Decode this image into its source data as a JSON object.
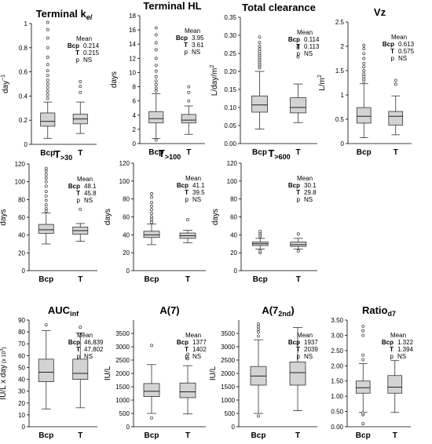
{
  "chart_data": [
    {
      "type": "box",
      "title": "Terminal k",
      "title_sub": "el",
      "title_sub_italic": true,
      "ylabel": "day",
      "ylabel_sup": "−1",
      "ylim": [
        0,
        1.0
      ],
      "yticks": [
        "0",
        "0.2",
        "0.4",
        "0.6",
        "0.8",
        "1"
      ],
      "categories": [
        "Bcp",
        "T"
      ],
      "boxes": [
        {
          "whislo": 0.05,
          "q1": 0.15,
          "med": 0.19,
          "q3": 0.26,
          "whishi": 0.35,
          "fliers": [
            0.38,
            0.41,
            0.44,
            0.47,
            0.5,
            0.53,
            0.57,
            0.61,
            0.66,
            0.72,
            0.8,
            0.88,
            0.95,
            1.01
          ]
        },
        {
          "whislo": 0.09,
          "q1": 0.17,
          "med": 0.21,
          "q3": 0.25,
          "whishi": 0.35,
          "fliers": [
            0.43,
            0.48,
            0.52
          ]
        }
      ],
      "stats": {
        "header": "Mean",
        "rows": [
          [
            "Bcp",
            "0.214"
          ],
          [
            "T",
            "0.215"
          ],
          [
            "p",
            "NS"
          ]
        ]
      }
    },
    {
      "type": "box",
      "title": "Terminal HL",
      "ylabel": "days",
      "ylim": [
        0,
        18
      ],
      "yticks": [
        "0",
        "2",
        "4",
        "6",
        "8",
        "10",
        "12",
        "14",
        "16",
        "18"
      ],
      "categories": [
        "Bcp",
        "T"
      ],
      "boxes": [
        {
          "whislo": 0.7,
          "q1": 2.9,
          "med": 3.5,
          "q3": 4.5,
          "whishi": 7.0,
          "fliers": [
            0.5,
            7.4,
            7.8,
            8.3,
            8.8,
            9.4,
            10.2,
            11.0,
            12.0,
            13.2,
            14.2,
            15.3,
            16.3
          ]
        },
        {
          "whislo": 1.3,
          "q1": 2.9,
          "med": 3.3,
          "q3": 4.1,
          "whishi": 5.3,
          "fliers": [
            6.0,
            7.2,
            8.0
          ]
        }
      ],
      "stats": {
        "header": "Mean",
        "rows": [
          [
            "Bcp",
            "3.95"
          ],
          [
            "T",
            "3.61"
          ],
          [
            "p",
            "NS"
          ]
        ]
      }
    },
    {
      "type": "box",
      "title": "Total clearance",
      "ylabel": "L/day/m",
      "ylabel_sup": "2",
      "ylim": [
        0,
        0.35
      ],
      "yticks": [
        "0.00",
        "0.05",
        "0.10",
        "0.15",
        "0.20",
        "0.25",
        "0.30",
        "0.35"
      ],
      "categories": [
        "Bcp",
        "T"
      ],
      "boxes": [
        {
          "whislo": 0.04,
          "q1": 0.087,
          "med": 0.107,
          "q3": 0.132,
          "whishi": 0.2,
          "fliers": [
            0.21,
            0.215,
            0.22,
            0.225,
            0.23,
            0.235,
            0.24,
            0.245,
            0.25,
            0.255,
            0.262,
            0.27,
            0.28,
            0.295
          ]
        },
        {
          "whislo": 0.058,
          "q1": 0.085,
          "med": 0.1,
          "q3": 0.127,
          "whishi": 0.165,
          "fliers": [
            0.24,
            0.265,
            0.27
          ]
        }
      ],
      "stats": {
        "header": "Mean",
        "rows": [
          [
            "Bcp",
            "0.114"
          ],
          [
            "T",
            "0.113"
          ],
          [
            "p",
            "NS"
          ]
        ]
      }
    },
    {
      "type": "box",
      "title": "Vz",
      "ylabel": "L/m",
      "ylabel_sup": "2",
      "ylim": [
        0,
        2.5
      ],
      "yticks": [
        "0",
        "0.5",
        "1",
        "1.5",
        "2",
        "2.5"
      ],
      "categories": [
        "Bcp",
        "T"
      ],
      "boxes": [
        {
          "whislo": 0.12,
          "q1": 0.42,
          "med": 0.56,
          "q3": 0.74,
          "whishi": 1.23,
          "fliers": [
            1.28,
            1.33,
            1.38,
            1.43,
            1.5,
            1.58,
            1.65,
            1.75,
            1.85,
            1.95,
            2.02
          ]
        },
        {
          "whislo": 0.18,
          "q1": 0.38,
          "med": 0.56,
          "q3": 0.66,
          "whishi": 0.98,
          "fliers": [
            1.22,
            1.3
          ]
        }
      ],
      "stats": {
        "header": "Mean",
        "rows": [
          [
            "Bcp",
            "0.613"
          ],
          [
            "T",
            "0.575"
          ],
          [
            "p",
            "NS"
          ]
        ]
      }
    },
    {
      "type": "box",
      "title": "T",
      "title_sub": ">30",
      "ylabel": "days",
      "ylim": [
        0,
        120
      ],
      "yticks": [
        "0",
        "20",
        "40",
        "60",
        "80",
        "100",
        "120"
      ],
      "categories": [
        "Bcp",
        "T"
      ],
      "boxes": [
        {
          "whislo": 30,
          "q1": 42,
          "med": 46,
          "q3": 52,
          "whishi": 65,
          "fliers": [
            67,
            70,
            74,
            79,
            84,
            89,
            95,
            100,
            104,
            108,
            112,
            115
          ]
        },
        {
          "whislo": 33,
          "q1": 41,
          "med": 45,
          "q3": 49,
          "whishi": 53,
          "fliers": [
            69
          ]
        }
      ],
      "stats": {
        "header": "Mean",
        "rows": [
          [
            "Bcp",
            "48.1"
          ],
          [
            "T",
            "45.8"
          ],
          [
            "p",
            "NS"
          ]
        ]
      }
    },
    {
      "type": "box",
      "title": "T",
      "title_sub": ">100",
      "ylabel": "days",
      "ylim": [
        0,
        120
      ],
      "yticks": [
        "0",
        "20",
        "40",
        "60",
        "80",
        "100",
        "120"
      ],
      "categories": [
        "Bcp",
        "T"
      ],
      "boxes": [
        {
          "whislo": 29,
          "q1": 37,
          "med": 40,
          "q3": 44,
          "whishi": 52,
          "fliers": [
            54,
            57,
            60,
            64,
            68,
            72,
            76,
            82,
            86
          ]
        },
        {
          "whislo": 31,
          "q1": 36,
          "med": 39,
          "q3": 42,
          "whishi": 45,
          "fliers": [
            57
          ]
        }
      ],
      "stats": {
        "header": "Mean",
        "rows": [
          [
            "Bcp",
            "41.1"
          ],
          [
            "T",
            "39.5"
          ],
          [
            "p",
            "NS"
          ]
        ]
      }
    },
    {
      "type": "box",
      "title": "T",
      "title_sub": ">600",
      "ylabel": "days",
      "ylim": [
        0,
        120
      ],
      "yticks": [
        "0",
        "20",
        "40",
        "60",
        "80",
        "100",
        "120"
      ],
      "categories": [
        "Bcp",
        "T"
      ],
      "boxes": [
        {
          "whislo": 24,
          "q1": 28,
          "med": 30,
          "q3": 32,
          "whishi": 36,
          "fliers": [
            20,
            22,
            38,
            40,
            42,
            44
          ]
        },
        {
          "whislo": 24,
          "q1": 27,
          "med": 29,
          "q3": 32,
          "whishi": 36,
          "fliers": [
            22,
            41
          ]
        }
      ],
      "stats": {
        "header": "Mean",
        "rows": [
          [
            "Bcp",
            "30.1"
          ],
          [
            "T",
            "29.8"
          ],
          [
            "p",
            "NS"
          ]
        ]
      }
    },
    {
      "type": "box",
      "title": "AUC",
      "title_sub": "inf",
      "ylabel": "IU/L x day",
      "ylabel_paren": "(x 10",
      "ylabel_paren_sup": "3",
      "ylabel_paren_end": ")",
      "ylim": [
        0,
        90
      ],
      "yticks": [
        "0",
        "10",
        "20",
        "30",
        "40",
        "50",
        "60",
        "70",
        "80",
        "90"
      ],
      "categories": [
        "Bcp",
        "T"
      ],
      "boxes": [
        {
          "whislo": 15,
          "q1": 38,
          "med": 46,
          "q3": 57,
          "whishi": 81,
          "fliers": [
            86
          ]
        },
        {
          "whislo": 16,
          "q1": 40,
          "med": 45,
          "q3": 57,
          "whishi": 79,
          "fliers": [
            84
          ]
        }
      ],
      "stats": {
        "header": "Mean",
        "rows": [
          [
            "Bcp",
            "46,839"
          ],
          [
            "T",
            "47,802"
          ],
          [
            "p",
            "NS"
          ]
        ]
      }
    },
    {
      "type": "box",
      "title": "A(7)",
      "ylabel": "IU/L",
      "ylim": [
        0,
        4000
      ],
      "yticks": [
        "0",
        "500",
        "1000",
        "1500",
        "2000",
        "2500",
        "3000",
        "3500"
      ],
      "categories": [
        "Bcp",
        "T"
      ],
      "boxes": [
        {
          "whislo": 500,
          "q1": 1130,
          "med": 1330,
          "q3": 1620,
          "whishi": 2330,
          "fliers": [
            330,
            3050
          ]
        },
        {
          "whislo": 480,
          "q1": 1090,
          "med": 1310,
          "q3": 1640,
          "whishi": 2290,
          "fliers": [
            2550,
            2720
          ]
        }
      ],
      "stats": {
        "header": "Mean",
        "rows": [
          [
            "Bcp",
            "1377"
          ],
          [
            "T",
            "1402"
          ],
          [
            "p",
            "NS"
          ]
        ]
      }
    },
    {
      "type": "box",
      "title": "A(7",
      "title_sub": "2nd",
      "title_end": ")",
      "ylabel": "IU/L",
      "ylim": [
        0,
        4000
      ],
      "yticks": [
        "0",
        "500",
        "1000",
        "1500",
        "2000",
        "2500",
        "3000",
        "3500"
      ],
      "categories": [
        "Bcp",
        "T"
      ],
      "boxes": [
        {
          "whislo": 500,
          "q1": 1560,
          "med": 1900,
          "q3": 2260,
          "whishi": 3260,
          "fliers": [
            400,
            3400,
            3550,
            3650,
            3750,
            3850
          ]
        },
        {
          "whislo": 600,
          "q1": 1560,
          "med": 2030,
          "q3": 2430,
          "whishi": 3720,
          "fliers": []
        }
      ],
      "stats": {
        "header": "Mean",
        "rows": [
          [
            "Bcp",
            "1937"
          ],
          [
            "T",
            "2039"
          ],
          [
            "p",
            "NS"
          ]
        ]
      }
    },
    {
      "type": "box",
      "title": "Ratio",
      "title_sub": "d7",
      "ylabel": "",
      "ylim": [
        0,
        3.5
      ],
      "yticks": [
        "0.00",
        "0.50",
        "1.00",
        "1.50",
        "2.00",
        "2.50",
        "3.00",
        "3.50"
      ],
      "categories": [
        "Bcp",
        "T"
      ],
      "boxes": [
        {
          "whislo": 0.47,
          "q1": 1.1,
          "med": 1.28,
          "q3": 1.5,
          "whishi": 2.07,
          "fliers": [
            0.1,
            0.4,
            0.45,
            2.2,
            2.35,
            3.0,
            3.15,
            3.3
          ]
        },
        {
          "whislo": 0.47,
          "q1": 1.1,
          "med": 1.3,
          "q3": 1.68,
          "whishi": 2.17,
          "fliers": []
        }
      ],
      "stats": {
        "header": "Mean",
        "rows": [
          [
            "Bcp",
            "1.322"
          ],
          [
            "T",
            "1.394"
          ],
          [
            "p",
            "NS"
          ]
        ]
      }
    }
  ]
}
